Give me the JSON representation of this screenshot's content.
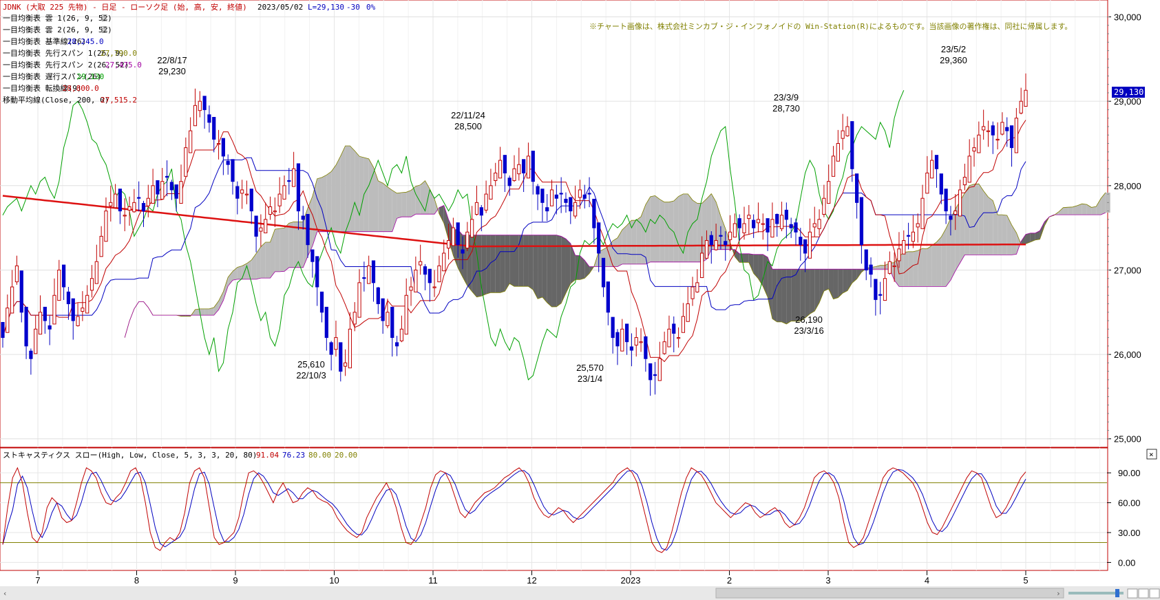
{
  "header": {
    "title": "JDNK (大取 225 先物) - 日足 - ローソク足 (始, 高, 安, 終値)",
    "date": "2023/05/02",
    "last": "L=29,130",
    "change": "-30",
    "pct": "0%"
  },
  "legend": [
    {
      "label": "一目均衡表 雲 1(26, 9, 52)",
      "value": "雲",
      "color": "#808080"
    },
    {
      "label": "一目均衡表 雲 2(26, 9, 52)",
      "value": "雲",
      "color": "#808080"
    },
    {
      "label": "一目均衡表 基準線(26)",
      "value": "28,245.0",
      "color": "#0000c0"
    },
    {
      "label": "一目均衡表 先行スパン 1(26, 9)",
      "value": "27,790.0",
      "color": "#808000"
    },
    {
      "label": "一目均衡表 先行スパン 2(26, 52)",
      "value": "27,475.0",
      "color": "#a000a0"
    },
    {
      "label": "一目均衡表 遅行スパン(26)",
      "value": "29,130",
      "color": "#00a000"
    },
    {
      "label": "一目均衡表 転換線(9)",
      "value": "28,800.0",
      "color": "#c00000"
    },
    {
      "label": "移動平均線(Close, 200, 0)",
      "value": "27,515.2",
      "color": "#c00000"
    }
  ],
  "copyright": "※チャート画像は、株式会社ミンカブ・ジ・インフォノイドの Win-Station(R)によるものです。当該画像の著作権は、同社に帰属します。",
  "price_tag": "29,130",
  "stoch": {
    "title": "ストキャスティクス スロー(High, Low, Close, 5, 3, 3, 20, 80)",
    "v1": "91.04",
    "v2": "76.23",
    "v3": "80.00",
    "v4": "20.00",
    "close_icon": "×"
  },
  "chart_data": {
    "type": "candlestick",
    "ylim": [
      24900,
      30200
    ],
    "yticks": [
      "30,000",
      "29,000",
      "28,000",
      "27,000",
      "26,000",
      "25,000"
    ],
    "stoch_ylim": [
      -8,
      115
    ],
    "stoch_yticks": [
      "90.00",
      "60.00",
      "30.00",
      "0.00"
    ],
    "stoch_levels": [
      80,
      20
    ],
    "months": [
      "7",
      "8",
      "9",
      "10",
      "11",
      "12",
      "2023",
      "2",
      "3",
      "4",
      "5"
    ],
    "annotations": [
      {
        "text1": "22/8/17",
        "text2": "29,230"
      },
      {
        "text1": "22/10/3",
        "text2": "25,610"
      },
      {
        "text1": "22/11/24",
        "text2": "28,500"
      },
      {
        "text1": "23/1/4",
        "text2": "25,570"
      },
      {
        "text1": "23/3/9",
        "text2": "28,730"
      },
      {
        "text1": "23/3/16",
        "text2": "26,190"
      },
      {
        "text1": "23/5/2",
        "text2": "29,360"
      }
    ],
    "close": [
      26200,
      26550,
      26800,
      27050,
      26500,
      26100,
      25950,
      26300,
      26500,
      26400,
      26300,
      26700,
      27000,
      26800,
      26600,
      26400,
      26450,
      26550,
      26700,
      26900,
      27100,
      27400,
      27700,
      27800,
      27900,
      27700,
      27650,
      27750,
      27800,
      27850,
      27700,
      27850,
      28000,
      27900,
      28050,
      28100,
      27950,
      27850,
      28050,
      28450,
      28650,
      28950,
      29000,
      28900,
      28750,
      28550,
      28500,
      28350,
      28250,
      28050,
      27850,
      27950,
      27900,
      27700,
      27400,
      27500,
      27600,
      27750,
      27700,
      27900,
      28000,
      28050,
      28200,
      27700,
      27600,
      27300,
      27100,
      26800,
      26500,
      26200,
      26000,
      26200,
      25800,
      25900,
      26300,
      26500,
      26850,
      26900,
      27050,
      26850,
      26600,
      26400,
      26500,
      26200,
      26100,
      26300,
      26700,
      26800,
      27000,
      27100,
      26950,
      26850,
      26800,
      27050,
      27200,
      27350,
      27500,
      27300,
      27200,
      27450,
      27600,
      27800,
      27650,
      27900,
      28000,
      28150,
      28300,
      28150,
      28000,
      28200,
      28250,
      28150,
      28350,
      28050,
      27900,
      27800,
      27700,
      27950,
      27850,
      27900,
      27800,
      27700,
      27800,
      27950,
      27850,
      27900,
      27500,
      27200,
      26800,
      26500,
      26200,
      26100,
      26300,
      26150,
      26050,
      26200,
      26150,
      25950,
      25700,
      25750,
      25950,
      26150,
      26300,
      26250,
      26200,
      26450,
      26600,
      26800,
      26850,
      27200,
      27350,
      27300,
      27350,
      27400,
      27300,
      27450,
      27550,
      27500,
      27550,
      27650,
      27500,
      27600,
      27550,
      27450,
      27600,
      27550,
      27650,
      27600,
      27500,
      27450,
      27300,
      27200,
      27450,
      27550,
      27600,
      27850,
      28050,
      28350,
      28500,
      28650,
      28700,
      28200,
      27800,
      27300,
      27000,
      26950,
      26650,
      26700,
      26900,
      27100,
      27050,
      27250,
      27350,
      27400,
      27450,
      27550,
      27850,
      28150,
      28300,
      28200,
      27900,
      27700,
      27600,
      27700,
      27950,
      28100,
      28350,
      28450,
      28600,
      28700,
      28650,
      28600,
      28550,
      28750,
      28650,
      28450,
      28800,
      29000,
      29130
    ],
    "open_offset": 180,
    "stoch_k": [
      18,
      55,
      85,
      95,
      80,
      50,
      25,
      20,
      30,
      55,
      65,
      60,
      45,
      40,
      42,
      60,
      80,
      95,
      92,
      85,
      70,
      60,
      58,
      65,
      70,
      80,
      92,
      95,
      85,
      60,
      30,
      15,
      12,
      20,
      25,
      22,
      30,
      50,
      80,
      92,
      95,
      85,
      55,
      25,
      18,
      20,
      25,
      30,
      45,
      70,
      90,
      92,
      88,
      80,
      70,
      60,
      72,
      80,
      70,
      60,
      62,
      70,
      75,
      72,
      65,
      62,
      60,
      55,
      45,
      38,
      32,
      28,
      25,
      30,
      45,
      55,
      65,
      72,
      80,
      70,
      55,
      35,
      20,
      18,
      25,
      40,
      55,
      75,
      88,
      92,
      90,
      80,
      65,
      50,
      45,
      52,
      60,
      65,
      70,
      72,
      75,
      80,
      85,
      88,
      92,
      95,
      90,
      80,
      65,
      55,
      48,
      45,
      50,
      55,
      52,
      45,
      40,
      45,
      50,
      55,
      60,
      65,
      70,
      75,
      80,
      88,
      92,
      95,
      90,
      80,
      60,
      40,
      20,
      12,
      10,
      15,
      30,
      50,
      70,
      85,
      95,
      92,
      88,
      80,
      70,
      60,
      55,
      50,
      45,
      50,
      55,
      60,
      58,
      50,
      45,
      48,
      52,
      55,
      50,
      40,
      35,
      38,
      45,
      55,
      70,
      85,
      90,
      92,
      88,
      80,
      65,
      40,
      20,
      15,
      18,
      25,
      40,
      55,
      70,
      85,
      92,
      95,
      93,
      90,
      85,
      80,
      70,
      55,
      40,
      30,
      28,
      35,
      45,
      55,
      65,
      75,
      85,
      92,
      90,
      85,
      70,
      55,
      45,
      48,
      55,
      65,
      75,
      85,
      91
    ]
  }
}
